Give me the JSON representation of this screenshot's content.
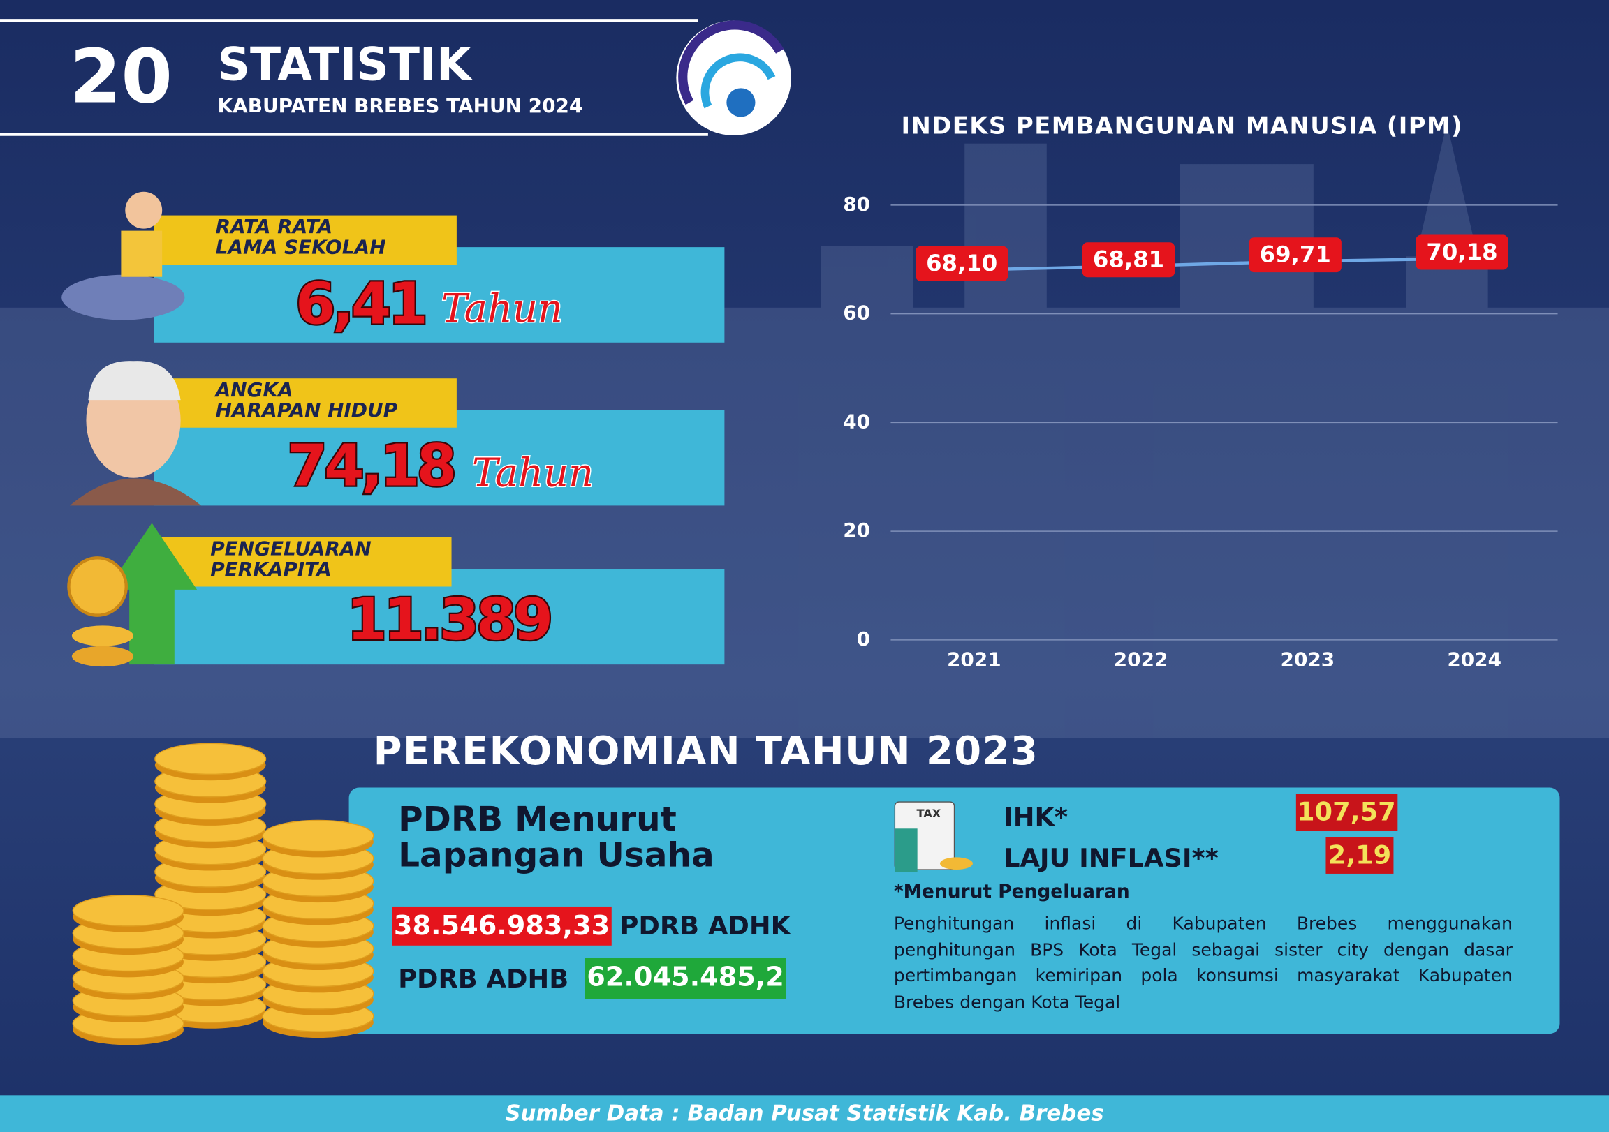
{
  "header": {
    "number": "20",
    "title": "STATISTIK",
    "subtitle": "KABUPATEN BREBES TAHUN 2024"
  },
  "indicators": [
    {
      "label_lines": [
        "RATA RATA",
        "LAMA SEKOLAH"
      ],
      "value": "6,41",
      "unit": "Tahun"
    },
    {
      "label_lines": [
        "ANGKA",
        "HARAPAN HIDUP"
      ],
      "value": "74,18",
      "unit": "Tahun"
    },
    {
      "label_lines": [
        "PENGELUARAN",
        "PERKAPITA"
      ],
      "value": "11.389"
    }
  ],
  "chart_data": {
    "type": "line",
    "title": "INDEKS PEMBANGUNAN MANUSIA (IPM)",
    "categories": [
      "2021",
      "2022",
      "2023",
      "2024"
    ],
    "series": [
      {
        "color": "#6fa8e6",
        "values": [
          68.1,
          68.81,
          69.71,
          70.18
        ],
        "value_labels": [
          "68,10",
          "68,81",
          "69,71",
          "70,18"
        ]
      }
    ],
    "ylim": [
      0,
      80
    ],
    "yticks": [
      0,
      20,
      40,
      60,
      80
    ],
    "grid": true
  },
  "economy": {
    "title": "PEREKONOMIAN TAHUN 2023",
    "pdrb_title_lines": [
      "PDRB Menurut",
      "Lapangan Usaha"
    ],
    "adhk_value": "38.546.983,33",
    "adhk_label": "PDRB ADHK",
    "adhb_label": "PDRB ADHB",
    "adhb_value": "62.045.485,2",
    "tax_icon": "TAX",
    "ihk_label": "IHK*",
    "ihk_value": "107,57",
    "inflation_label": "LAJU INFLASI**",
    "inflation_value": "2,19",
    "note": "*Menurut Pengeluaran",
    "description": "Penghitungan inflasi di Kabupaten Brebes menggunakan penghitungan BPS Kota Tegal sebagai sister city dengan dasar pertimbangan kemiripan pola konsumsi masyarakat Kabupaten Brebes dengan Kota Tegal"
  },
  "footer": "Sumber Data : Badan Pusat Statistik Kab. Brebes"
}
